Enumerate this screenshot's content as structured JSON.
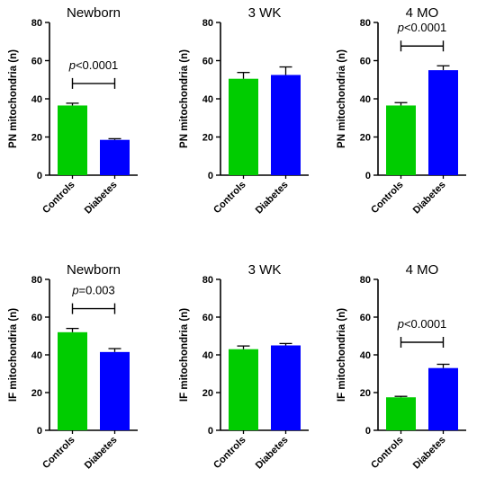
{
  "colors": {
    "controls": "#00cc00",
    "diabetes": "#0000ff",
    "axis": "#000000"
  },
  "chart_data": [
    {
      "type": "bar",
      "title": "Newborn",
      "ylabel": "PN mitochondria (n)",
      "ylim": [
        0,
        80
      ],
      "yticks": [
        "0",
        "20",
        "40",
        "60",
        "80"
      ],
      "categories": [
        "Controls",
        "Diabetes"
      ],
      "values": [
        36.5,
        18.5
      ],
      "errors": [
        1.2,
        0.6
      ],
      "annotation": {
        "prefix": "p",
        "rest": "<0.0001"
      }
    },
    {
      "type": "bar",
      "title": "3 WK",
      "ylabel": "PN mitochondria (n)",
      "ylim": [
        0,
        80
      ],
      "yticks": [
        "0",
        "20",
        "40",
        "60",
        "80"
      ],
      "categories": [
        "Controls",
        "Diabetes"
      ],
      "values": [
        50.5,
        52.5
      ],
      "errors": [
        3.3,
        4.2
      ],
      "annotation": null
    },
    {
      "type": "bar",
      "title": "4  MO",
      "ylabel": "PN mitochondria (n)",
      "ylim": [
        0,
        80
      ],
      "yticks": [
        "0",
        "20",
        "40",
        "60",
        "80"
      ],
      "categories": [
        "Controls",
        "Diabetes"
      ],
      "values": [
        36.5,
        55.0
      ],
      "errors": [
        1.5,
        2.3
      ],
      "annotation": {
        "prefix": "p",
        "rest": "<0.0001"
      }
    },
    {
      "type": "bar",
      "title": "Newborn",
      "ylabel": "IF mitochondria (n)",
      "ylim": [
        0,
        80
      ],
      "yticks": [
        "0",
        "20",
        "40",
        "60",
        "80"
      ],
      "categories": [
        "Controls",
        "Diabetes"
      ],
      "values": [
        52.0,
        41.5
      ],
      "errors": [
        2.0,
        1.8
      ],
      "annotation": {
        "prefix": "p",
        "rest": "=0.003"
      }
    },
    {
      "type": "bar",
      "title": "3 WK",
      "ylabel": "IF mitochondria (n)",
      "ylim": [
        0,
        80
      ],
      "yticks": [
        "0",
        "20",
        "40",
        "60",
        "80"
      ],
      "categories": [
        "Controls",
        "Diabetes"
      ],
      "values": [
        43.0,
        45.0
      ],
      "errors": [
        1.7,
        1.0
      ],
      "annotation": null
    },
    {
      "type": "bar",
      "title": "4  MO",
      "ylabel": "IF mitochondria (n)",
      "ylim": [
        0,
        80
      ],
      "yticks": [
        "0",
        "20",
        "40",
        "60",
        "80"
      ],
      "categories": [
        "Controls",
        "Diabetes"
      ],
      "values": [
        17.5,
        33.0
      ],
      "errors": [
        0.5,
        2.0
      ],
      "annotation": {
        "prefix": "p",
        "rest": "<0.0001"
      }
    }
  ]
}
